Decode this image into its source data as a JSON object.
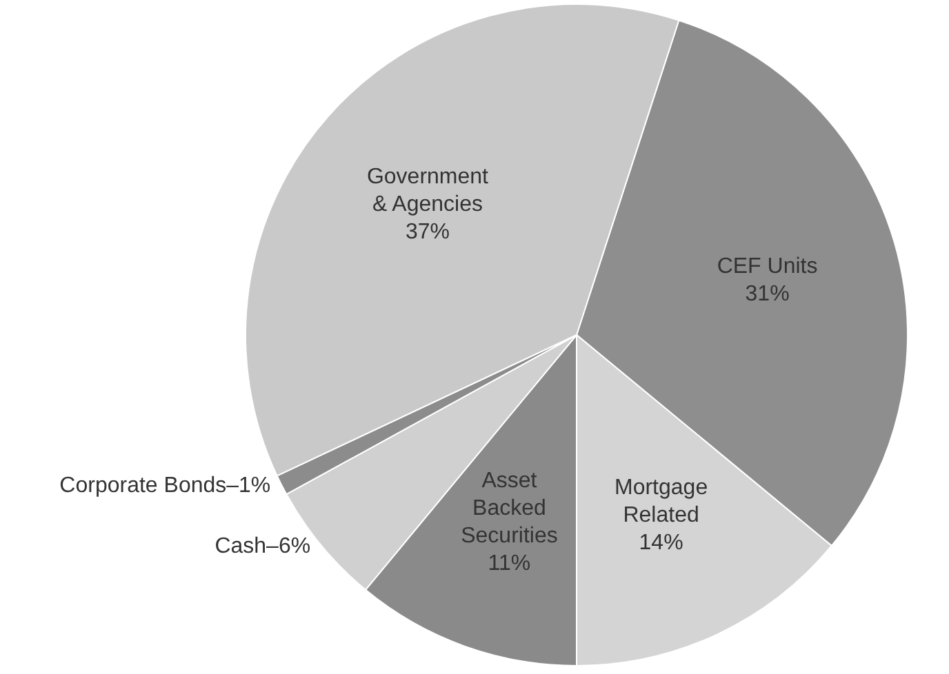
{
  "chart_data": {
    "type": "pie",
    "categories": [
      "CEF Units",
      "Mortgage Related",
      "Asset Backed Securities",
      "Cash",
      "Corporate Bonds",
      "Government & Agencies"
    ],
    "values": [
      31,
      14,
      11,
      6,
      1,
      37
    ],
    "value_labels": [
      "31%",
      "14%",
      "11%",
      "6%",
      "1%",
      "37%"
    ],
    "colors": [
      "#8e8e8e",
      "#d4d4d4",
      "#8a8a8a",
      "#d0d0d0",
      "#8c8c8c",
      "#c9c9c9"
    ]
  }
}
